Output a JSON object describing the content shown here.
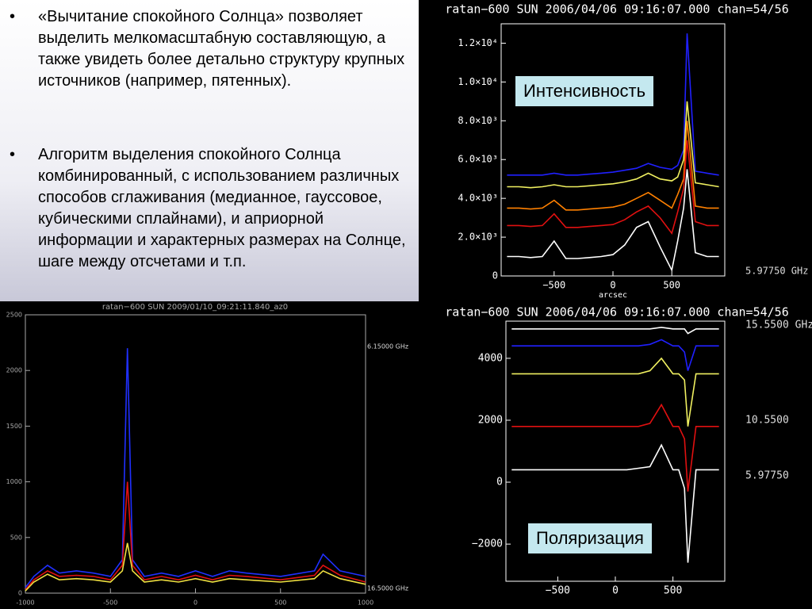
{
  "bullets": [
    "«Вычитание спокойного Солнца» позволяет выделить мелкомасштабную составляющую, а также увидеть более детально структуру крупных источников (например, пятенных).",
    "Алгоритм выделения спокойного Солнца комбинированный, с использованием различных способов сглаживания (медианное, гауссовое, кубическими сплайнами), и априорной информации и характерных размерах на Солнце, шаге между отсчетами и т.п."
  ],
  "chart_data": [
    {
      "type": "line",
      "title": "ratan−600 SUN 2006/04/06 09:16:07.000 chan=54/56",
      "xlabel": "arcsec",
      "annotation": "Интенсивность",
      "x": [
        -900,
        -800,
        -700,
        -600,
        -500,
        -400,
        -300,
        -200,
        -100,
        0,
        100,
        200,
        300,
        400,
        500,
        550,
        600,
        630,
        700,
        800,
        900
      ],
      "xlim": [
        -950,
        950
      ],
      "xticks": [
        {
          "value": -500,
          "label": "−500"
        },
        0,
        500
      ],
      "ylim": [
        0,
        13000
      ],
      "yticks": [
        0,
        {
          "value": 2000,
          "label": "2.0×10³"
        },
        {
          "value": 4000,
          "label": "4.0×10³"
        },
        {
          "value": 6000,
          "label": "6.0×10³"
        },
        {
          "value": 8000,
          "label": "8.0×10³"
        },
        {
          "value": 10000,
          "label": "1.0×10⁴"
        },
        {
          "value": 12000,
          "label": "1.2×10⁴"
        }
      ],
      "series": [
        {
          "color": "#2020ff",
          "values": [
            5200,
            5200,
            5200,
            5200,
            5300,
            5200,
            5200,
            5250,
            5300,
            5350,
            5450,
            5550,
            5800,
            5600,
            5500,
            5700,
            6500,
            12500,
            5400,
            5300,
            5200
          ]
        },
        {
          "color": "#f0f060",
          "values": [
            4600,
            4600,
            4550,
            4600,
            4700,
            4600,
            4600,
            4650,
            4700,
            4750,
            4850,
            5000,
            5300,
            5000,
            4900,
            5100,
            6000,
            9000,
            4800,
            4700,
            4600
          ]
        },
        {
          "color": "#ff8000",
          "values": [
            3500,
            3500,
            3450,
            3500,
            3900,
            3400,
            3400,
            3450,
            3500,
            3550,
            3700,
            4000,
            4300,
            3900,
            3500,
            4200,
            5000,
            8000,
            3600,
            3500,
            3500
          ]
        },
        {
          "color": "#e01010",
          "values": [
            2600,
            2600,
            2550,
            2600,
            3200,
            2500,
            2500,
            2550,
            2600,
            2650,
            2900,
            3300,
            3600,
            3000,
            2200,
            3300,
            4500,
            7000,
            2800,
            2600,
            2600
          ]
        },
        {
          "color": "#ffffff",
          "values": [
            1000,
            1000,
            950,
            1000,
            1800,
            900,
            900,
            950,
            1000,
            1100,
            1600,
            2500,
            2800,
            1500,
            300,
            1800,
            3500,
            5500,
            1200,
            1000,
            1000
          ]
        }
      ],
      "channel_labels": [
        "5.97750 GHz"
      ]
    },
    {
      "type": "line",
      "title": "ratan−600 SUN 2006/04/06 09:16:07.000 chan=54/56",
      "annotation": "Поляризация",
      "x": [
        -900,
        -800,
        -700,
        -600,
        -500,
        -400,
        -300,
        -200,
        -100,
        0,
        100,
        200,
        300,
        400,
        500,
        550,
        600,
        630,
        700,
        800,
        900
      ],
      "xlim": [
        -950,
        950
      ],
      "xticks": [
        {
          "value": -500,
          "label": "−500"
        },
        0,
        500
      ],
      "ylim": [
        -3200,
        5200
      ],
      "yticks": [
        {
          "value": -2000,
          "label": "−2000"
        },
        0,
        2000,
        4000
      ],
      "series": [
        {
          "color": "#ffffff",
          "values": [
            4950,
            4950,
            4950,
            4950,
            4950,
            4950,
            4950,
            4950,
            4950,
            4950,
            4950,
            4950,
            4950,
            5000,
            4950,
            4950,
            4950,
            4800,
            4950,
            4950,
            4950
          ]
        },
        {
          "color": "#2020ff",
          "values": [
            4400,
            4400,
            4400,
            4400,
            4400,
            4400,
            4400,
            4400,
            4400,
            4400,
            4400,
            4400,
            4450,
            4600,
            4400,
            4400,
            4200,
            3600,
            4400,
            4400,
            4400
          ]
        },
        {
          "color": "#f0f060",
          "values": [
            3500,
            3500,
            3500,
            3500,
            3500,
            3500,
            3500,
            3500,
            3500,
            3500,
            3500,
            3500,
            3600,
            4000,
            3500,
            3500,
            3300,
            1800,
            3500,
            3500,
            3500
          ]
        },
        {
          "color": "#e01010",
          "values": [
            1800,
            1800,
            1800,
            1800,
            1800,
            1800,
            1800,
            1800,
            1800,
            1800,
            1800,
            1800,
            1900,
            2500,
            1800,
            1800,
            1400,
            -300,
            1800,
            1800,
            1800
          ]
        },
        {
          "color": "#ffffff",
          "values": [
            400,
            400,
            400,
            400,
            400,
            400,
            400,
            400,
            400,
            400,
            400,
            450,
            500,
            1200,
            400,
            400,
            -200,
            -2600,
            400,
            400,
            400
          ]
        }
      ],
      "channel_labels": [
        "15.5500 GHz",
        "10.5500",
        "5.97750"
      ]
    },
    {
      "type": "line",
      "title": "ratan−600 SUN 2009/01/10_09:21:11.840_az0",
      "x": [
        -1000,
        -950,
        -870,
        -800,
        -700,
        -600,
        -500,
        -430,
        -400,
        -370,
        -300,
        -200,
        -100,
        0,
        100,
        200,
        300,
        500,
        700,
        750,
        850,
        1000
      ],
      "xlim": [
        -1000,
        1000
      ],
      "xticks": [
        -1000,
        -500,
        0,
        500,
        1000
      ],
      "ylim": [
        0,
        2500
      ],
      "yticks": [
        0,
        500,
        1000,
        1500,
        2000,
        2500
      ],
      "series": [
        {
          "color": "#2030ff",
          "values": [
            50,
            150,
            250,
            180,
            200,
            180,
            150,
            300,
            2200,
            300,
            150,
            180,
            150,
            200,
            150,
            200,
            180,
            150,
            200,
            350,
            200,
            150
          ]
        },
        {
          "color": "#e01010",
          "values": [
            30,
            120,
            200,
            150,
            160,
            150,
            120,
            250,
            1000,
            250,
            120,
            150,
            120,
            160,
            120,
            160,
            150,
            120,
            160,
            250,
            160,
            100
          ]
        },
        {
          "color": "#f0e040",
          "values": [
            20,
            100,
            170,
            120,
            130,
            120,
            100,
            200,
            450,
            200,
            100,
            120,
            100,
            130,
            100,
            130,
            120,
            100,
            130,
            200,
            130,
            80
          ]
        }
      ],
      "channel_labels": [
        "6.15000 GHz",
        "16.5000 GHz"
      ]
    }
  ]
}
